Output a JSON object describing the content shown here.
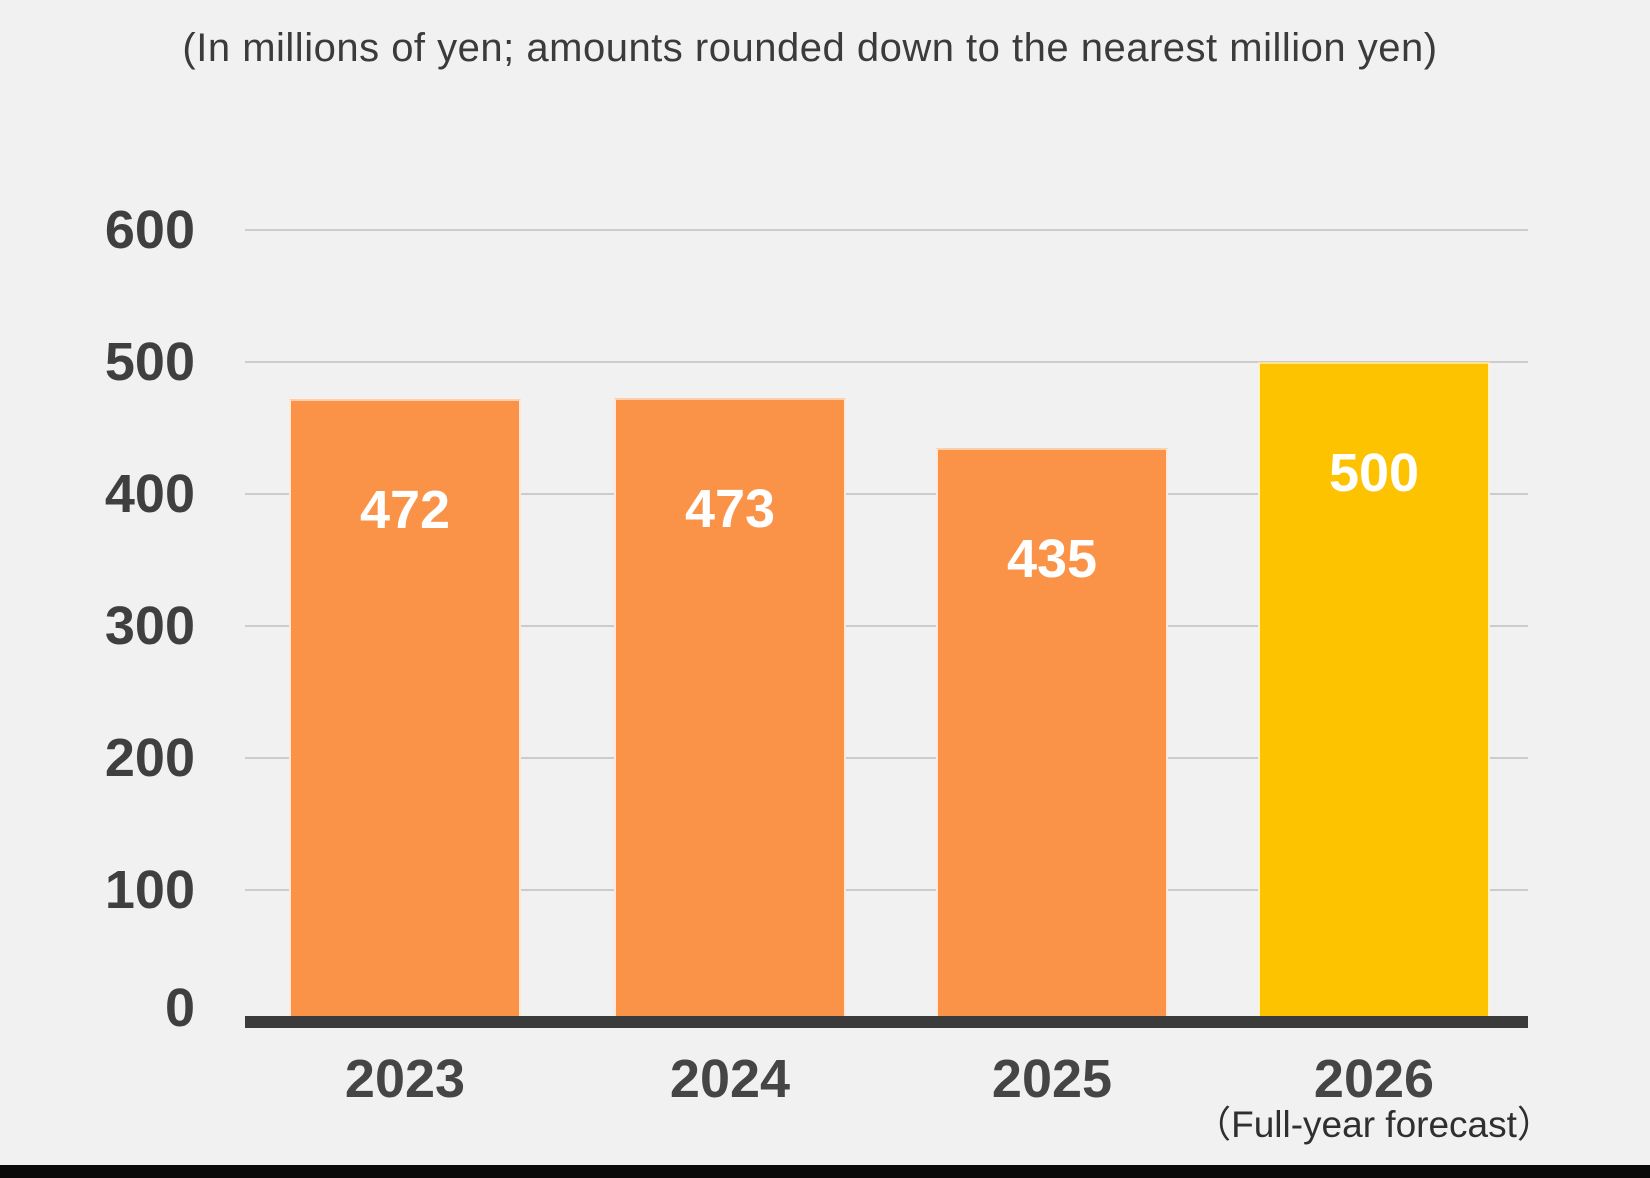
{
  "chart_data": {
    "type": "bar",
    "title": "(In millions of yen; amounts rounded down to the nearest million yen)",
    "categories": [
      "2023",
      "2024",
      "2025",
      "2026"
    ],
    "values": [
      472,
      473,
      435,
      500
    ],
    "value_labels": [
      "472",
      "473",
      "435",
      "500"
    ],
    "bar_colors": [
      "#fa9347",
      "#fa9347",
      "#fa9347",
      "#fdc300"
    ],
    "category_note": {
      "index": 3,
      "label": "（Full-year forecast）"
    },
    "xlabel": "",
    "ylabel": "",
    "ylim": [
      0,
      600
    ],
    "yticks": [
      0,
      100,
      200,
      300,
      400,
      500,
      600
    ],
    "grid": true,
    "legend": false
  },
  "colors": {
    "background": "#f1f1f1",
    "bar_default": "#fa9347",
    "bar_forecast": "#fdc300",
    "grid_line": "#bfbfbf",
    "axis_line": "#3b3b3b",
    "label_text": "#3f3f3f",
    "value_label_text": "#ffffff",
    "footer_strip": "#0a0a0a"
  }
}
